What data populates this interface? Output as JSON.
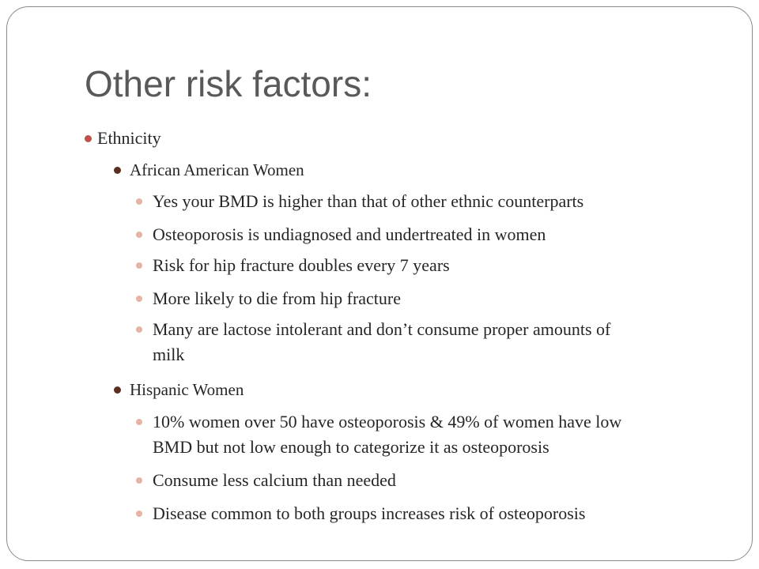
{
  "slide": {
    "title": "Other risk factors:",
    "bullets": {
      "ethnicity": "Ethnicity",
      "african_american_women": "African American Women",
      "aa_points": [
        "Yes your BMD is higher than that of other ethnic counterparts",
        "Osteoporosis is undiagnosed and undertreated in women",
        "Risk for hip fracture doubles every 7 years",
        "More likely to die from hip fracture",
        "Many are lactose intolerant and don’t consume proper amounts of",
        "milk"
      ],
      "hispanic_women": "Hispanic Women",
      "hispanic_points": [
        "10% women over 50 have osteoporosis & 49% of women have low",
        "BMD but not low enough to categorize it as osteoporosis",
        "Consume less calcium than needed",
        "Disease common to both groups increases risk of osteoporosis"
      ]
    }
  },
  "colors": {
    "level1_bullet": "#c0504d",
    "level2_bullet": "#5a2e20",
    "level3_bullet": "#e6b4a4",
    "title_text": "#595959",
    "body_text": "#262626"
  }
}
